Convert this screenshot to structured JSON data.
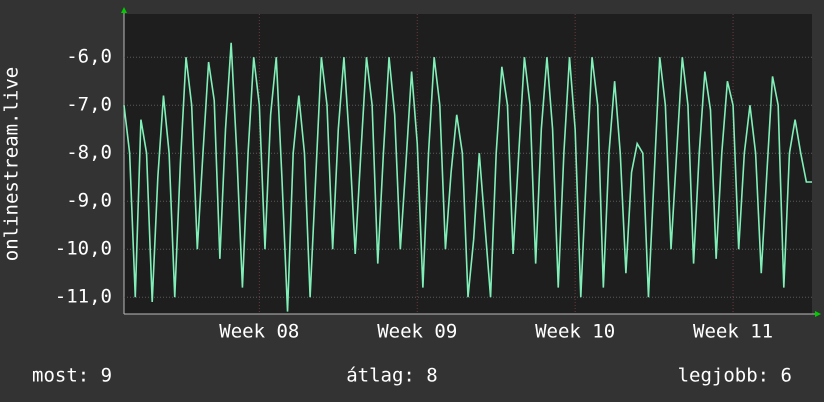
{
  "chart_data": {
    "type": "line",
    "y_label": "onlinestream.live",
    "x": [
      0,
      0.25,
      0.5,
      0.75,
      1,
      1.25,
      1.5,
      1.75,
      2,
      2.25,
      2.5,
      2.75,
      3,
      3.25,
      3.5,
      3.75,
      4,
      4.25,
      4.5,
      4.75,
      5,
      5.25,
      5.5,
      5.75,
      6,
      6.25,
      6.5,
      6.75,
      7,
      7.25,
      7.5,
      7.75,
      8,
      8.25,
      8.5,
      8.75,
      9,
      9.25,
      9.5,
      9.75,
      10,
      10.25,
      10.5,
      10.75,
      11,
      11.25,
      11.5,
      11.75,
      12,
      12.25,
      12.5,
      12.75,
      13,
      13.25,
      13.5,
      13.75,
      14,
      14.25,
      14.5,
      14.75,
      15,
      15.25,
      15.5,
      15.75,
      16,
      16.25,
      16.5,
      16.75,
      17,
      17.25,
      17.5,
      17.75,
      18,
      18.25,
      18.5,
      18.75,
      19,
      19.25,
      19.5,
      19.75,
      20,
      20.25,
      20.5,
      20.75,
      21,
      21.25,
      21.5,
      21.75,
      22,
      22.25,
      22.5,
      22.75,
      23,
      23.25,
      23.5,
      23.75,
      24,
      24.25,
      24.5,
      24.75,
      25,
      25.25,
      25.5,
      25.75,
      26,
      26.25,
      26.5,
      26.75,
      27,
      27.25,
      27.5,
      27.75,
      28,
      28.25,
      28.5,
      28.75,
      29,
      29.25,
      29.5,
      29.75,
      30,
      30.25,
      30.5
    ],
    "series": [
      {
        "color": "#80f0b8",
        "values": [
          -7.0,
          -8.0,
          -11.0,
          -7.3,
          -8.0,
          -11.1,
          -8.5,
          -6.8,
          -8.0,
          -11.0,
          -8.2,
          -6.0,
          -7.0,
          -10.0,
          -8.0,
          -6.1,
          -6.9,
          -10.2,
          -7.5,
          -5.7,
          -8.0,
          -10.8,
          -8.0,
          -6.0,
          -7.0,
          -10.0,
          -7.2,
          -6.0,
          -8.5,
          -11.3,
          -8.0,
          -6.8,
          -8.0,
          -11.0,
          -8.5,
          -6.0,
          -7.0,
          -10.0,
          -7.5,
          -6.0,
          -7.8,
          -10.1,
          -8.0,
          -6.0,
          -7.0,
          -10.3,
          -8.0,
          -6.0,
          -7.2,
          -10.0,
          -8.2,
          -6.3,
          -7.8,
          -10.8,
          -8.0,
          -6.0,
          -7.0,
          -10.0,
          -8.4,
          -7.2,
          -8.0,
          -11.0,
          -9.8,
          -8.0,
          -9.5,
          -11.0,
          -8.0,
          -6.2,
          -7.0,
          -10.1,
          -8.0,
          -6.0,
          -7.0,
          -10.3,
          -7.5,
          -6.0,
          -7.5,
          -10.8,
          -8.0,
          -6.0,
          -7.5,
          -11.0,
          -8.4,
          -6.0,
          -7.0,
          -10.8,
          -8.0,
          -6.5,
          -8.0,
          -10.5,
          -8.4,
          -7.8,
          -8.0,
          -11.0,
          -8.5,
          -6.0,
          -7.0,
          -10.0,
          -8.0,
          -6.0,
          -7.0,
          -10.3,
          -8.0,
          -6.3,
          -7.1,
          -10.2,
          -8.0,
          -6.5,
          -7.0,
          -10.0,
          -8.0,
          -7.0,
          -8.0,
          -10.5,
          -8.4,
          -6.4,
          -7.0,
          -10.8,
          -8.0,
          -7.3,
          -8.0,
          -8.6,
          -8.6
        ]
      }
    ],
    "xlim": [
      0,
      30.5
    ],
    "xticks": [
      {
        "value": 6,
        "label": "Week 08"
      },
      {
        "value": 13,
        "label": "Week 09"
      },
      {
        "value": 20,
        "label": "Week 10"
      },
      {
        "value": 27,
        "label": "Week 11"
      }
    ],
    "ylim": [
      -11.35,
      -5.1
    ],
    "yticks": [
      {
        "value": -11,
        "label": "-11,0"
      },
      {
        "value": -10,
        "label": "-10,0"
      },
      {
        "value": -9,
        "label": "-9,0"
      },
      {
        "value": -8,
        "label": "-8,0"
      },
      {
        "value": -7,
        "label": "-7,0"
      },
      {
        "value": -6,
        "label": "-6,0"
      }
    ],
    "grid": true,
    "stats": [
      "most: 9",
      "átlag: 8",
      "legjobb: 6"
    ]
  }
}
